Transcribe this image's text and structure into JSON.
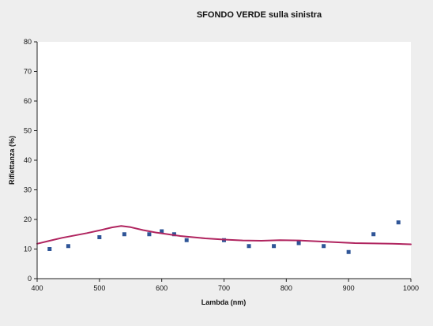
{
  "chart_data": {
    "type": "scatter",
    "title": "SFONDO VERDE sulla sinistra",
    "xlabel": "Lambda (nm)",
    "ylabel": "Riflettanza (%)",
    "xlim": [
      400,
      1000
    ],
    "ylim": [
      0,
      80
    ],
    "x_ticks": [
      "400",
      "500",
      "600",
      "700",
      "800",
      "900",
      "1000"
    ],
    "y_ticks": [
      "0",
      "10",
      "20",
      "30",
      "40",
      "50",
      "60",
      "70",
      "80"
    ],
    "grid": false,
    "legend": "none",
    "background_color": "#ffffff",
    "series": [
      {
        "kind": "markers",
        "marker": "square",
        "color": "#2f5597",
        "x": [
          420,
          450,
          500,
          540,
          580,
          600,
          620,
          640,
          700,
          740,
          780,
          820,
          860,
          900,
          940,
          980
        ],
        "y": [
          10,
          11,
          14,
          15,
          15,
          16,
          15,
          13,
          13,
          11,
          11,
          12,
          11,
          9,
          15,
          19
        ]
      },
      {
        "kind": "line",
        "color": "#b0245f",
        "x": [
          400,
          420,
          440,
          460,
          480,
          500,
          520,
          535,
          550,
          570,
          590,
          610,
          630,
          650,
          670,
          700,
          730,
          760,
          790,
          820,
          850,
          880,
          910,
          940,
          970,
          1000
        ],
        "y": [
          11.8,
          12.8,
          13.8,
          14.6,
          15.4,
          16.3,
          17.3,
          17.8,
          17.4,
          16.4,
          15.6,
          15.0,
          14.4,
          14.0,
          13.6,
          13.2,
          12.9,
          12.8,
          13.0,
          12.9,
          12.6,
          12.3,
          12.0,
          11.9,
          11.8,
          11.6
        ]
      }
    ]
  }
}
